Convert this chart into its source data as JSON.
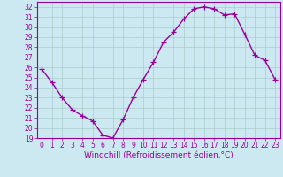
{
  "x": [
    0,
    1,
    2,
    3,
    4,
    5,
    6,
    7,
    8,
    9,
    10,
    11,
    12,
    13,
    14,
    15,
    16,
    17,
    18,
    19,
    20,
    21,
    22,
    23
  ],
  "y": [
    25.8,
    24.5,
    23.0,
    21.8,
    21.2,
    20.7,
    19.3,
    19.0,
    20.8,
    23.0,
    24.8,
    26.5,
    28.5,
    29.5,
    30.8,
    31.8,
    32.0,
    31.8,
    31.2,
    31.3,
    29.3,
    27.2,
    26.7,
    24.8
  ],
  "line_color": "#990099",
  "marker": "+",
  "marker_size": 4,
  "bg_color": "#cce8f0",
  "grid_color": "#aacccc",
  "xlabel": "Windchill (Refroidissement éolien,°C)",
  "ylim": [
    19,
    32.5
  ],
  "xlim": [
    -0.5,
    23.5
  ],
  "yticks": [
    19,
    20,
    21,
    22,
    23,
    24,
    25,
    26,
    27,
    28,
    29,
    30,
    31,
    32
  ],
  "xticks": [
    0,
    1,
    2,
    3,
    4,
    5,
    6,
    7,
    8,
    9,
    10,
    11,
    12,
    13,
    14,
    15,
    16,
    17,
    18,
    19,
    20,
    21,
    22,
    23
  ],
  "tick_fontsize": 5.5,
  "xlabel_fontsize": 6.5,
  "line_width": 1.0,
  "border_color": "#660066"
}
